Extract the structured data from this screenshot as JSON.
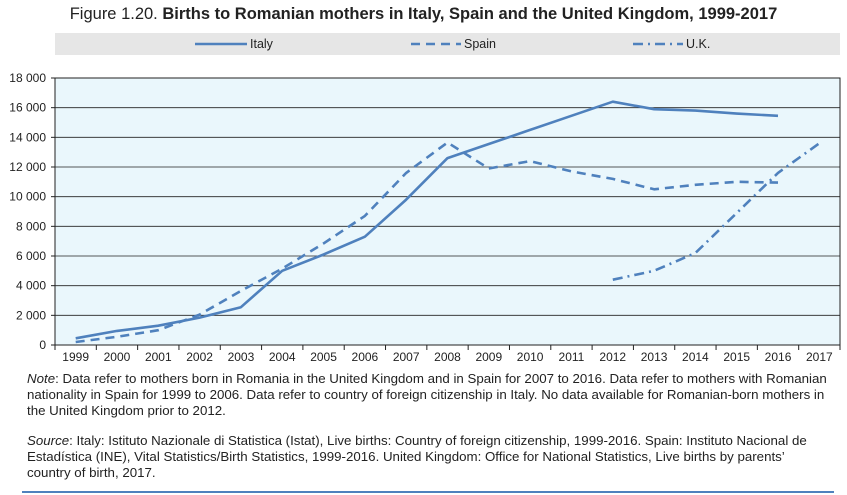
{
  "title": {
    "prefix": "Figure 1.20.",
    "main": "Births to Romanian mothers in Italy, Spain and the United Kingdom, 1999-2017"
  },
  "legend": [
    {
      "label": "Italy",
      "style": "solid"
    },
    {
      "label": "Spain",
      "style": "dashed"
    },
    {
      "label": "U.K.",
      "style": "dashdot"
    }
  ],
  "notes": {
    "note_label": "Note",
    "note_text": ": Data refer to mothers born in Romania in the United Kingdom and in Spain for 2007 to 2016. Data refer to mothers with Romanian nationality in Spain for 1999 to 2006. Data refer to country of foreign citizenship in Italy. No data available for Romanian-born mothers in the United Kingdom prior to 2012.",
    "source_label": "Source",
    "source_text": ": Italy: Istituto Nazionale di Statistica (Istat), Live births: Country of foreign citizenship, 1999-2016. Spain: Instituto Nacional de Estadística (INE), Vital Statistics/Birth Statistics, 1999-2016. United Kingdom: Office for National Statistics, Live births by parents’ country of birth, 2017."
  },
  "colors": {
    "line": "#4f81bd",
    "plot_bg": "#eaf7fc",
    "legend_bg": "#e6e6e6",
    "grid": "#222222"
  },
  "chart_data": {
    "type": "line",
    "title": "Births to Romanian mothers in Italy, Spain and the United Kingdom, 1999-2017",
    "xlabel": "",
    "ylabel": "",
    "ylim": [
      0,
      18000
    ],
    "yticks": [
      0,
      2000,
      4000,
      6000,
      8000,
      10000,
      12000,
      14000,
      16000,
      18000
    ],
    "ytick_labels": [
      "0",
      "2 000",
      "4 000",
      "6 000",
      "8 000",
      "10 000",
      "12 000",
      "14 000",
      "16 000",
      "18 000"
    ],
    "categories": [
      "1999",
      "2000",
      "2001",
      "2002",
      "2003",
      "2004",
      "2005",
      "2006",
      "2007",
      "2008",
      "2009",
      "2010",
      "2011",
      "2012",
      "2013",
      "2014",
      "2015",
      "2016",
      "2017"
    ],
    "grid": "horizontal",
    "legend_position": "top",
    "series": [
      {
        "name": "Italy",
        "style": "solid",
        "values": [
          450,
          950,
          1300,
          1850,
          2550,
          5000,
          6100,
          7300,
          9800,
          12600,
          13550,
          14500,
          15450,
          16400,
          15900,
          15800,
          15600,
          15450,
          null
        ]
      },
      {
        "name": "Spain",
        "style": "dashed",
        "values": [
          200,
          550,
          1000,
          2050,
          3650,
          5150,
          6850,
          8700,
          11600,
          13650,
          11900,
          12400,
          11700,
          11200,
          10500,
          10800,
          11000,
          10950,
          null
        ]
      },
      {
        "name": "U.K.",
        "style": "dashdot",
        "values": [
          null,
          null,
          null,
          null,
          null,
          null,
          null,
          null,
          null,
          null,
          null,
          null,
          null,
          4400,
          5000,
          6200,
          8900,
          11600,
          13600
        ]
      }
    ]
  }
}
